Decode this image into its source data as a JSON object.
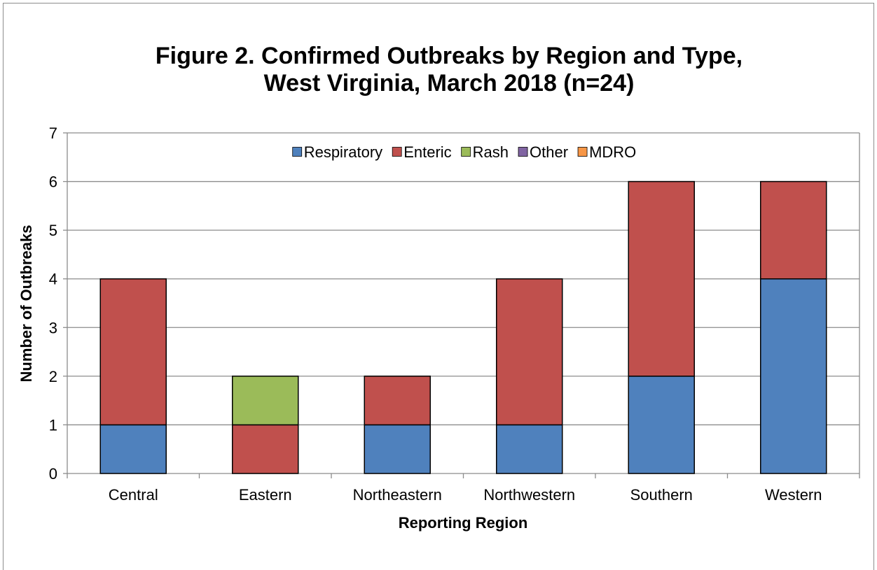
{
  "chart_data": {
    "type": "bar",
    "stacked": true,
    "title_line1": "Figure 2.  Confirmed Outbreaks by Region and Type,",
    "title_line2": "West Virginia, March 2018 (n=24)",
    "xlabel": "Reporting Region",
    "ylabel": "Number of Outbreaks",
    "ylim": [
      0,
      7
    ],
    "yticks": [
      0,
      1,
      2,
      3,
      4,
      5,
      6,
      7
    ],
    "grid": true,
    "legend_position": "top-center",
    "categories": [
      "Central",
      "Eastern",
      "Northeastern",
      "Northwestern",
      "Southern",
      "Western"
    ],
    "series": [
      {
        "name": "Respiratory",
        "color": "#4f81bd",
        "values": [
          1,
          0,
          1,
          1,
          2,
          4
        ]
      },
      {
        "name": "Enteric",
        "color": "#c0504d",
        "values": [
          3,
          1,
          1,
          3,
          4,
          2
        ]
      },
      {
        "name": "Rash",
        "color": "#9bbb59",
        "values": [
          0,
          1,
          0,
          0,
          0,
          0
        ]
      },
      {
        "name": "Other",
        "color": "#8064a2",
        "values": [
          0,
          0,
          0,
          0,
          0,
          0
        ]
      },
      {
        "name": "MDRO",
        "color": "#f79646",
        "values": [
          0,
          0,
          0,
          0,
          0,
          0
        ]
      }
    ]
  }
}
